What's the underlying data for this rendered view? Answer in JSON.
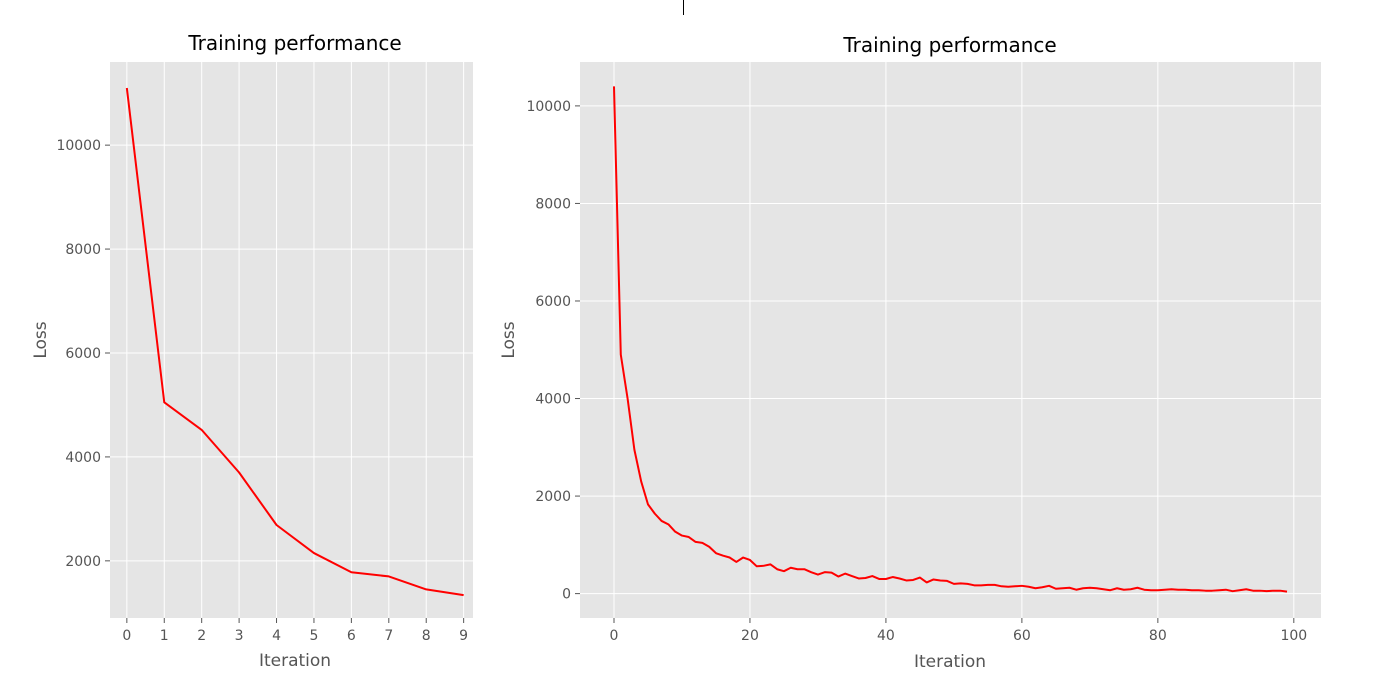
{
  "colors": {
    "background": "#ffffff",
    "plot_bg": "#e5e5e5",
    "grid": "#ffffff",
    "text": "#555555",
    "series": "#ff0000"
  },
  "chart_data": [
    {
      "type": "line",
      "title": "Training performance",
      "xlabel": "Iteration",
      "ylabel": "Loss",
      "grid": true,
      "xlim": [
        -0.45,
        9.25
      ],
      "ylim": [
        900,
        11600
      ],
      "x_ticks": [
        0,
        1,
        2,
        3,
        4,
        5,
        6,
        7,
        8,
        9
      ],
      "y_ticks": [
        2000,
        4000,
        6000,
        8000,
        10000
      ],
      "x_tick_labels": [
        "0",
        "1",
        "2",
        "3",
        "4",
        "5",
        "6",
        "7",
        "8",
        "9"
      ],
      "y_tick_labels": [
        "2000",
        "4000",
        "6000",
        "8000",
        "10000"
      ],
      "series": [
        {
          "color": "#ff0000",
          "x": [
            0,
            1,
            2,
            3,
            4,
            5,
            6,
            7,
            8,
            9
          ],
          "y": [
            11100,
            5050,
            4520,
            3700,
            2690,
            2150,
            1780,
            1700,
            1450,
            1340
          ]
        }
      ]
    },
    {
      "type": "line",
      "title": "Training performance",
      "xlabel": "Iteration",
      "ylabel": "Loss",
      "grid": true,
      "xlim": [
        -5,
        104
      ],
      "ylim": [
        -500,
        10900
      ],
      "x_ticks": [
        0,
        20,
        40,
        60,
        80,
        100
      ],
      "y_ticks": [
        0,
        2000,
        4000,
        6000,
        8000,
        10000
      ],
      "x_tick_labels": [
        "0",
        "20",
        "40",
        "60",
        "80",
        "100"
      ],
      "y_tick_labels": [
        "0",
        "2000",
        "4000",
        "6000",
        "8000",
        "10000"
      ],
      "series": [
        {
          "color": "#ff0000",
          "x": [
            0,
            1,
            2,
            3,
            4,
            5,
            6,
            7,
            8,
            9,
            10,
            11,
            12,
            13,
            14,
            15,
            16,
            17,
            18,
            19,
            20,
            21,
            22,
            23,
            24,
            25,
            26,
            27,
            28,
            29,
            30,
            31,
            32,
            33,
            34,
            35,
            36,
            37,
            38,
            39,
            40,
            41,
            42,
            43,
            44,
            45,
            46,
            47,
            48,
            49,
            50,
            51,
            52,
            53,
            54,
            55,
            56,
            57,
            58,
            59,
            60,
            61,
            62,
            63,
            64,
            65,
            66,
            67,
            68,
            69,
            70,
            71,
            72,
            73,
            74,
            75,
            76,
            77,
            78,
            79,
            80,
            81,
            82,
            83,
            84,
            85,
            86,
            87,
            88,
            89,
            90,
            91,
            92,
            93,
            94,
            95,
            96,
            97,
            98,
            99
          ],
          "y": [
            10400,
            4900,
            4000,
            2950,
            2300,
            1830,
            1640,
            1490,
            1420,
            1270,
            1190,
            1160,
            1060,
            1040,
            960,
            830,
            780,
            740,
            650,
            740,
            690,
            560,
            570,
            600,
            500,
            460,
            530,
            500,
            500,
            440,
            390,
            440,
            430,
            350,
            410,
            360,
            310,
            320,
            360,
            300,
            300,
            340,
            310,
            270,
            280,
            330,
            230,
            290,
            270,
            260,
            200,
            210,
            200,
            170,
            170,
            180,
            180,
            150,
            140,
            150,
            160,
            140,
            110,
            130,
            160,
            100,
            110,
            120,
            80,
            110,
            120,
            110,
            90,
            70,
            110,
            80,
            90,
            120,
            80,
            70,
            70,
            80,
            90,
            80,
            80,
            70,
            70,
            60,
            60,
            70,
            80,
            50,
            70,
            90,
            60,
            60,
            50,
            60,
            60,
            40
          ]
        }
      ]
    }
  ]
}
